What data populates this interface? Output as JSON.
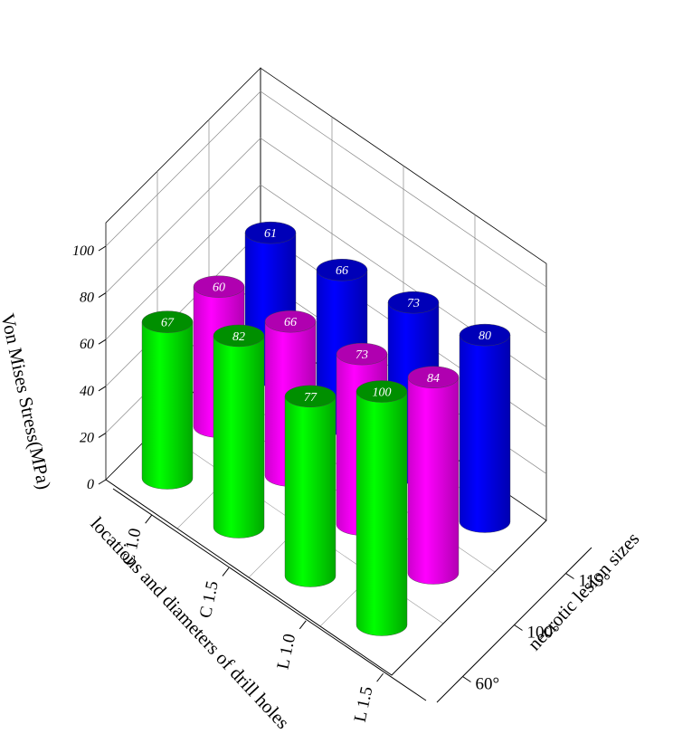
{
  "chart_data": {
    "type": "bar3d",
    "title": "",
    "ylabel": "Von Mises Stress(MPa)",
    "xlabel": "locations and diameters of drill holes",
    "zlabel": "necrotic lesion sizes",
    "x_categories": [
      "C 1.0",
      "C 1.5",
      "L 1.0",
      "L 1.5"
    ],
    "z_categories": [
      "60°",
      "100°",
      "115°"
    ],
    "y_ticks": [
      "0",
      "20",
      "40",
      "60",
      "80",
      "100"
    ],
    "ylim": [
      0,
      110
    ],
    "series": [
      {
        "name": "60°",
        "color": "#00ff00",
        "top_color": "#008f00",
        "values": [
          67,
          82,
          77,
          100
        ]
      },
      {
        "name": "100°",
        "color": "#ff00ff",
        "top_color": "#b000b0",
        "values": [
          60,
          66,
          73,
          84
        ]
      },
      {
        "name": "115°",
        "color": "#0000ff",
        "top_color": "#0000b8",
        "values": [
          61,
          66,
          73,
          80
        ]
      }
    ]
  }
}
